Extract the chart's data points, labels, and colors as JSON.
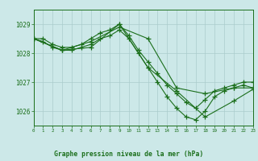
{
  "title": "Graphe pression niveau de la mer (hPa)",
  "bg_color": "#cce8e8",
  "grid_color": "#aacccc",
  "line_color": "#1a6e1a",
  "xlim": [
    0,
    23
  ],
  "ylim": [
    1025.5,
    1029.5
  ],
  "yticks": [
    1026,
    1027,
    1028,
    1029
  ],
  "xticks": [
    0,
    1,
    2,
    3,
    4,
    5,
    6,
    7,
    8,
    9,
    10,
    11,
    12,
    13,
    14,
    15,
    16,
    17,
    18,
    19,
    20,
    21,
    22,
    23
  ],
  "lines": [
    {
      "x": [
        0,
        1,
        2,
        3,
        4,
        5,
        6,
        7,
        8,
        9,
        10,
        11,
        12,
        13,
        14,
        15,
        16,
        17,
        18,
        19,
        20,
        21,
        22,
        23
      ],
      "y": [
        1028.5,
        1028.5,
        1028.3,
        1028.2,
        1028.2,
        1028.3,
        1028.5,
        1028.7,
        1028.8,
        1029.0,
        1028.6,
        1028.1,
        1027.7,
        1027.3,
        1026.9,
        1026.6,
        1026.3,
        1026.1,
        1026.4,
        1026.7,
        1026.8,
        1026.9,
        1027.0,
        1027.0
      ]
    },
    {
      "x": [
        0,
        1,
        2,
        3,
        4,
        5,
        6,
        7,
        8,
        9,
        10,
        11,
        12,
        13,
        14,
        15,
        16,
        17,
        18,
        19,
        20,
        21,
        22,
        23
      ],
      "y": [
        1028.5,
        1028.4,
        1028.2,
        1028.1,
        1028.1,
        1028.2,
        1028.3,
        1028.5,
        1028.6,
        1028.8,
        1028.5,
        1028.0,
        1027.5,
        1027.0,
        1026.5,
        1026.1,
        1025.8,
        1025.7,
        1026.0,
        1026.5,
        1026.7,
        1026.8,
        1026.9,
        1026.8
      ]
    },
    {
      "x": [
        0,
        3,
        6,
        9,
        12,
        15,
        18,
        21,
        23
      ],
      "y": [
        1028.5,
        1028.1,
        1028.4,
        1028.9,
        1028.5,
        1026.8,
        1026.6,
        1026.8,
        1026.8
      ]
    },
    {
      "x": [
        0,
        3,
        6,
        9,
        12,
        15,
        18,
        21,
        23
      ],
      "y": [
        1028.5,
        1028.1,
        1028.2,
        1029.0,
        1027.5,
        1026.7,
        1025.8,
        1026.35,
        1026.75
      ]
    }
  ]
}
